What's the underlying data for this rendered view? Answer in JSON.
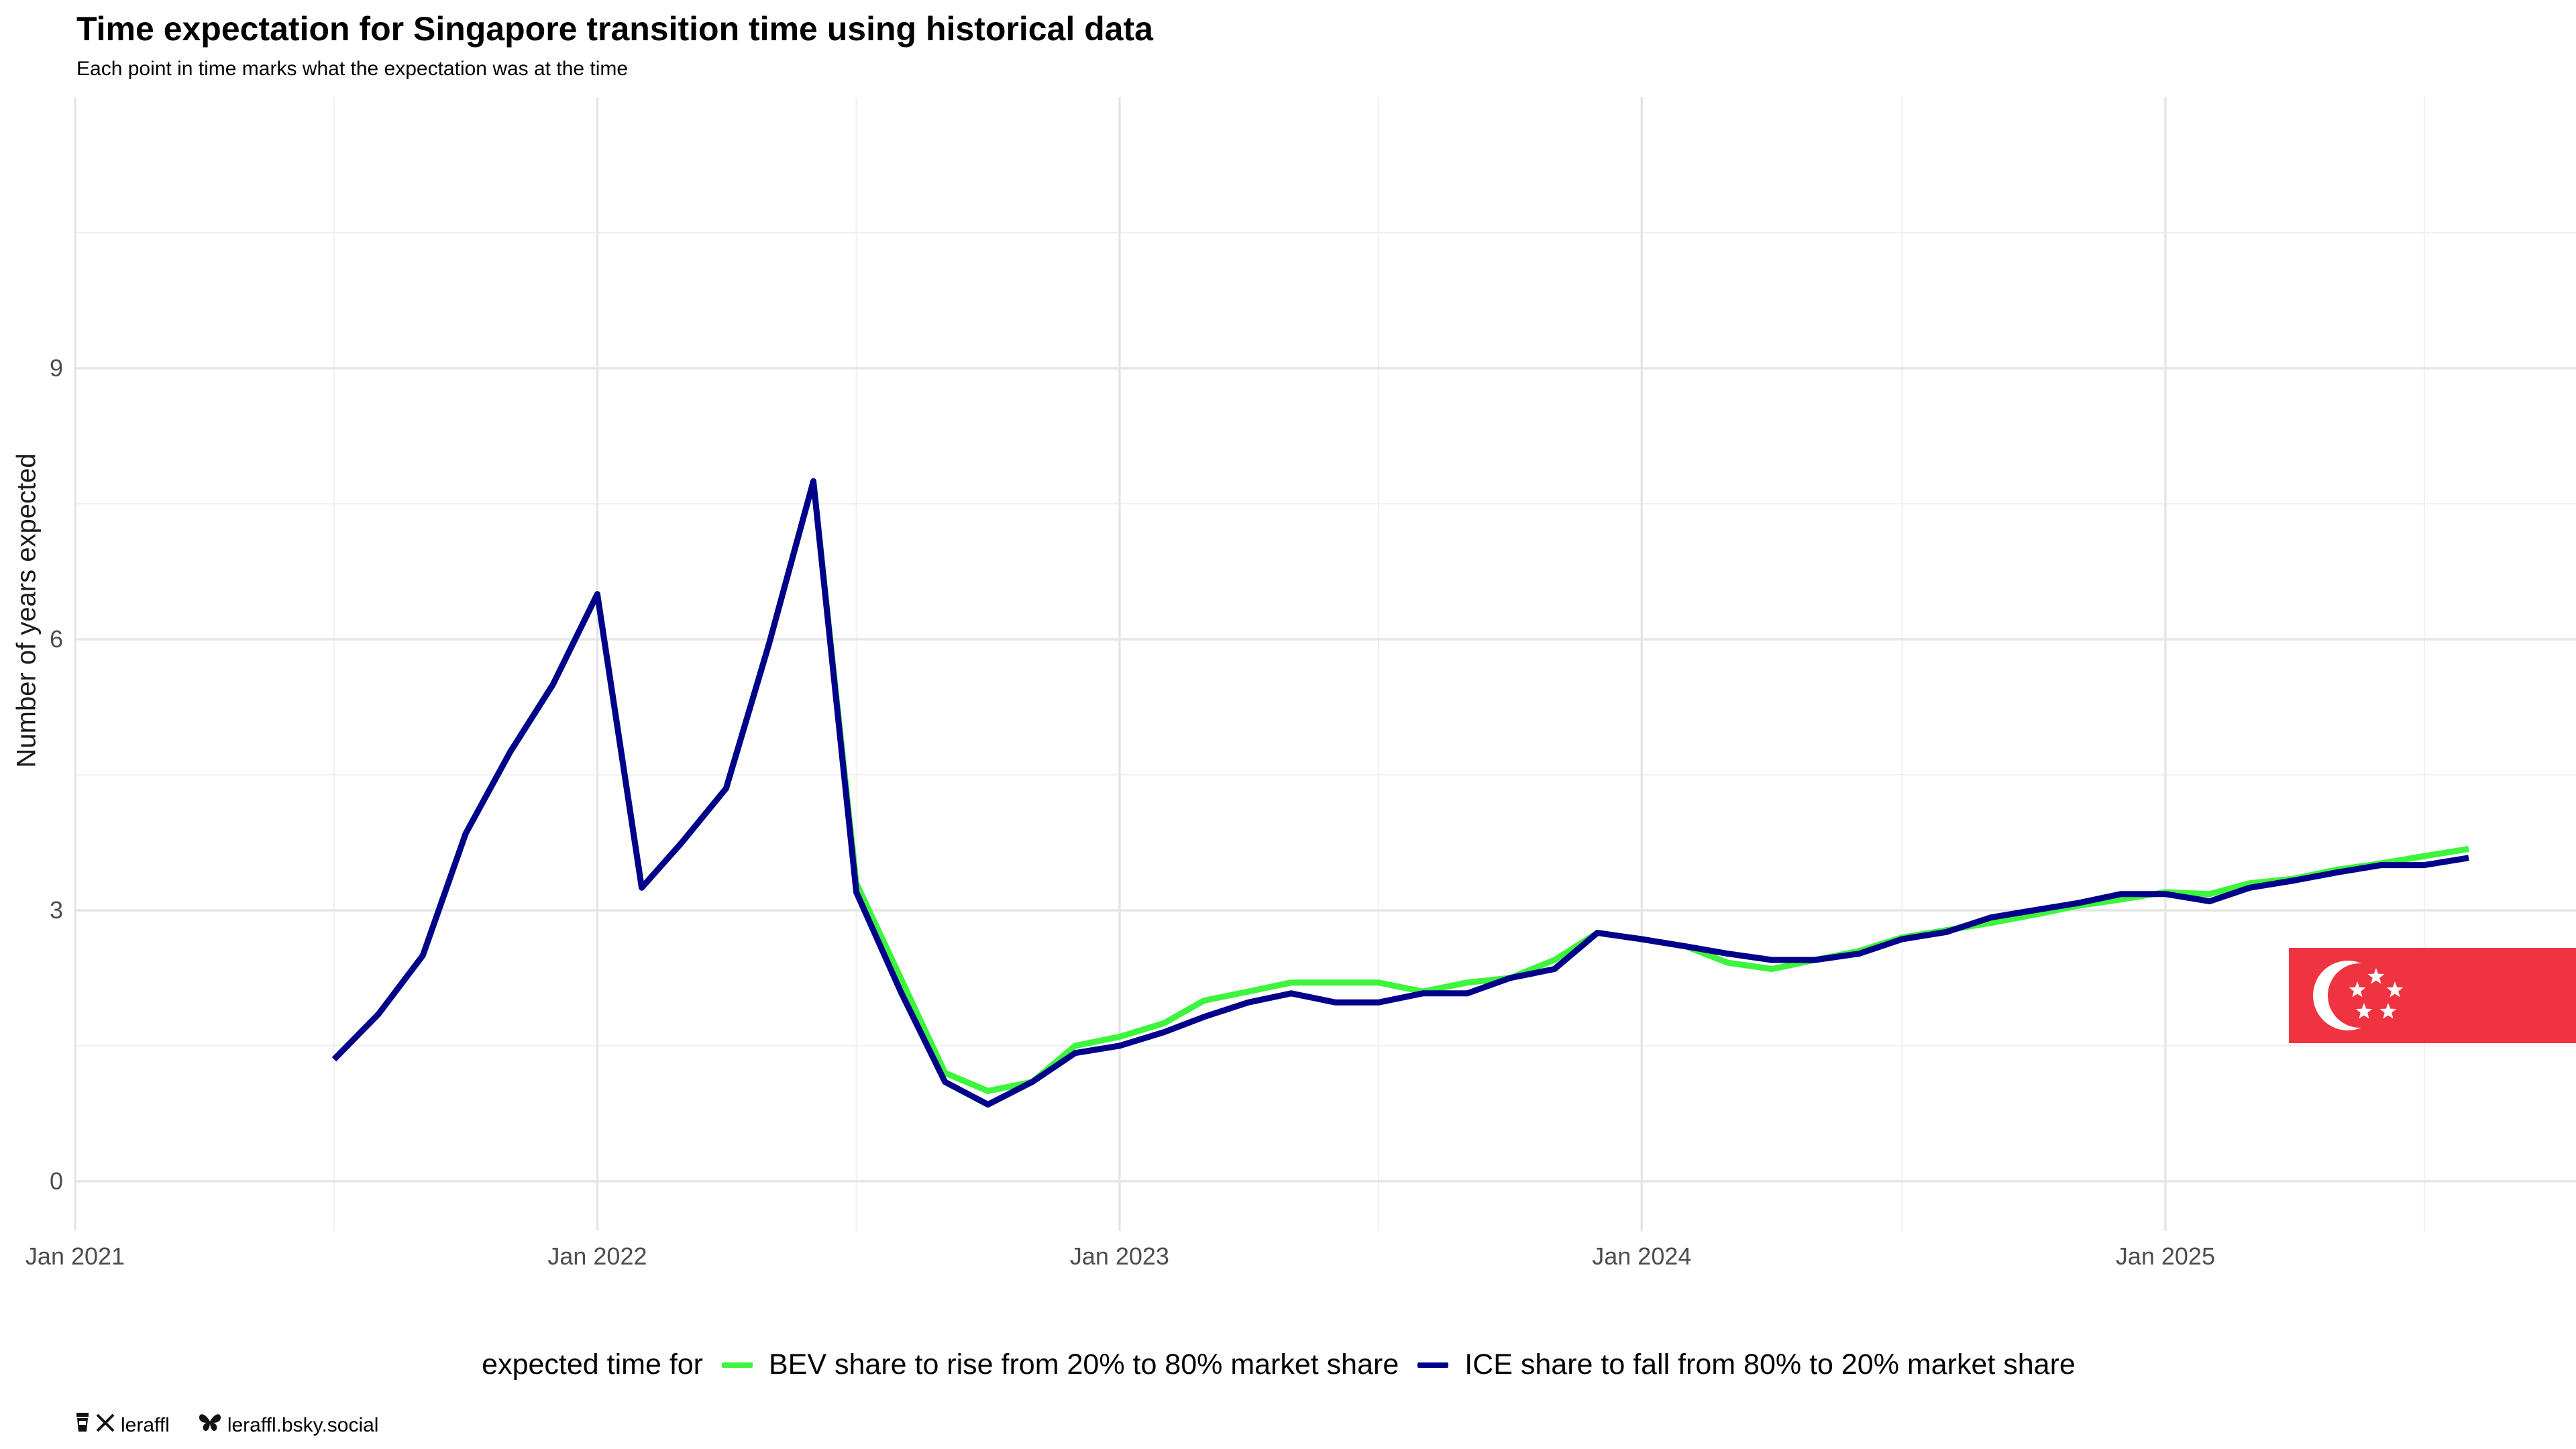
{
  "chart_data": {
    "type": "line",
    "title": "Time expectation for Singapore transition time using historical data",
    "subtitle": "Each point in time marks what the expectation was at the time",
    "xlabel": "",
    "ylabel": "Number of years expected",
    "xlim": [
      "2021-01-01",
      "2025-10-15"
    ],
    "ylim": [
      -0.55,
      12
    ],
    "grid": true,
    "legend_position": "bottom",
    "legend_title": "expected time for",
    "x_ticks": [
      "Jan 2021",
      "Jan 2022",
      "Jan 2023",
      "Jan 2024",
      "Jan 2025"
    ],
    "y_ticks": [
      "0",
      "3",
      "6",
      "9"
    ],
    "series": [
      {
        "name": "BEV share to rise from 20% to 80% market share",
        "color": "#3cf53c",
        "x": [
          "2021-07",
          "2021-08",
          "2021-09",
          "2021-10",
          "2021-11",
          "2021-12",
          "2022-01",
          "2022-02",
          "2022-03",
          "2022-04",
          "2022-05",
          "2022-06",
          "2022-07",
          "2022-08",
          "2022-09",
          "2022-10",
          "2022-11",
          "2022-12",
          "2023-01",
          "2023-02",
          "2023-03",
          "2023-04",
          "2023-05",
          "2023-06",
          "2023-07",
          "2023-08",
          "2023-09",
          "2023-10",
          "2023-11",
          "2023-12",
          "2024-01",
          "2024-02",
          "2024-03",
          "2024-04",
          "2024-05",
          "2024-06",
          "2024-07",
          "2024-08",
          "2024-09",
          "2024-10",
          "2024-11",
          "2024-12",
          "2025-01",
          "2025-02",
          "2025-03",
          "2025-04",
          "2025-05",
          "2025-06",
          "2025-07",
          "2025-08"
        ],
        "values": [
          1.35,
          1.85,
          2.5,
          3.85,
          4.75,
          5.5,
          6.5,
          3.25,
          3.75,
          4.35,
          5.95,
          7.75,
          3.3,
          2.25,
          1.2,
          1.0,
          1.1,
          1.5,
          1.6,
          1.75,
          2.0,
          2.1,
          2.2,
          2.2,
          2.2,
          2.1,
          2.2,
          2.25,
          2.45,
          2.75,
          2.68,
          2.6,
          2.42,
          2.35,
          2.45,
          2.55,
          2.7,
          2.78,
          2.86,
          2.95,
          3.05,
          3.12,
          3.2,
          3.18,
          3.3,
          3.35,
          3.45,
          3.52,
          3.6,
          3.68
        ]
      },
      {
        "name": "ICE share to fall from 80% to 20% market share",
        "color": "#00008b",
        "x": [
          "2021-07",
          "2021-08",
          "2021-09",
          "2021-10",
          "2021-11",
          "2021-12",
          "2022-01",
          "2022-02",
          "2022-03",
          "2022-04",
          "2022-05",
          "2022-06",
          "2022-07",
          "2022-08",
          "2022-09",
          "2022-10",
          "2022-11",
          "2022-12",
          "2023-01",
          "2023-02",
          "2023-03",
          "2023-04",
          "2023-05",
          "2023-06",
          "2023-07",
          "2023-08",
          "2023-09",
          "2023-10",
          "2023-11",
          "2023-12",
          "2024-01",
          "2024-02",
          "2024-03",
          "2024-04",
          "2024-05",
          "2024-06",
          "2024-07",
          "2024-08",
          "2024-09",
          "2024-10",
          "2024-11",
          "2024-12",
          "2025-01",
          "2025-02",
          "2025-03",
          "2025-04",
          "2025-05",
          "2025-06",
          "2025-07",
          "2025-08"
        ],
        "values": [
          1.35,
          1.85,
          2.5,
          3.85,
          4.75,
          5.5,
          6.5,
          3.25,
          3.75,
          4.35,
          5.95,
          7.75,
          3.2,
          2.1,
          1.1,
          0.85,
          1.1,
          1.42,
          1.5,
          1.65,
          1.82,
          1.98,
          2.08,
          1.98,
          1.98,
          2.08,
          2.08,
          2.25,
          2.35,
          2.75,
          2.68,
          2.6,
          2.52,
          2.45,
          2.45,
          2.52,
          2.68,
          2.76,
          2.92,
          3.0,
          3.08,
          3.18,
          3.18,
          3.1,
          3.25,
          3.33,
          3.42,
          3.5,
          3.5,
          3.58
        ]
      }
    ]
  },
  "flag": {
    "name": "Singapore",
    "red": "#ef3340",
    "white": "#ffffff"
  },
  "credits": {
    "x_handle": "leraffl",
    "bsky_handle": "leraffl.bsky.social"
  }
}
